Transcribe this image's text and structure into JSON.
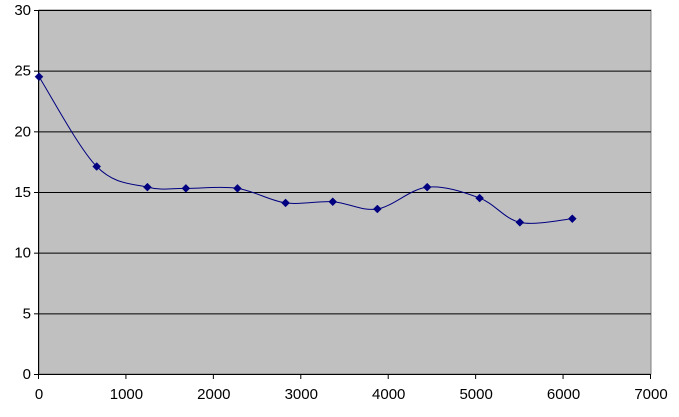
{
  "chart_data": {
    "type": "line",
    "title": "",
    "xlabel": "",
    "ylabel": "",
    "xlim": [
      0,
      7000
    ],
    "ylim": [
      0,
      30
    ],
    "x_ticks": [
      0,
      1000,
      2000,
      3000,
      4000,
      5000,
      6000,
      7000
    ],
    "y_ticks": [
      0,
      5,
      10,
      15,
      20,
      25,
      30
    ],
    "x_tick_labels": [
      "0",
      "1000",
      "2000",
      "3000",
      "4000",
      "5000",
      "6000",
      "7000"
    ],
    "y_tick_labels": [
      "0",
      "5",
      "10",
      "15",
      "20",
      "25",
      "30"
    ],
    "grid": "horizontal",
    "legend": "none",
    "background_color": "#C0C0C0",
    "series": [
      {
        "color": "#000080",
        "marker": "diamond",
        "line": "smooth",
        "x": [
          0,
          660,
          1240,
          1680,
          2270,
          2820,
          3360,
          3870,
          4440,
          5040,
          5500,
          6100
        ],
        "y": [
          24.5,
          17.1,
          15.4,
          15.3,
          15.3,
          14.1,
          14.2,
          13.6,
          15.4,
          14.5,
          12.5,
          12.8
        ]
      }
    ]
  }
}
